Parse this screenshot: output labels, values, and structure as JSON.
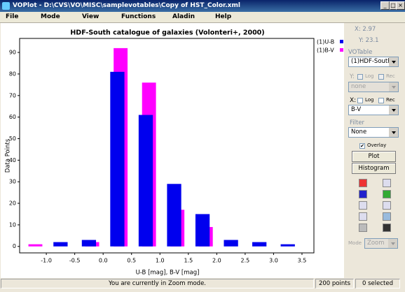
{
  "window": {
    "title": "VOPlot - D:\\CVS\\VO\\MISC\\samplevotables\\Copy of HST_Color.xml"
  },
  "menu": [
    "File",
    "Mode",
    "View",
    "Functions",
    "Aladin",
    "Help"
  ],
  "chart_data": {
    "type": "histogram",
    "title": "HDF-South catalogue of galaxies (Volonteri+, 2000)",
    "x_label": "U-B [mag], B-V [mag]",
    "y_label": "Data Points",
    "bins": [
      -1.5,
      -1.0,
      -0.5,
      0.0,
      0.5,
      1.0,
      1.5,
      2.0,
      2.5,
      3.0,
      3.5
    ],
    "series": [
      {
        "name": "(1)U-B",
        "color": "#0000ee",
        "values": [
          0,
          2,
          3,
          81,
          61,
          29,
          15,
          3,
          2,
          1
        ]
      },
      {
        "name": "(1)B-V",
        "color": "#ff00ff",
        "values": [
          1,
          0,
          2,
          92,
          76,
          17,
          9,
          0,
          0,
          0
        ]
      }
    ],
    "xlim": [
      -1.47,
      3.71
    ],
    "ylim": [
      -3,
      96.5
    ],
    "xticks": [
      {
        "value": -1.0,
        "label": "-1.0"
      },
      {
        "value": -0.5,
        "label": "-0.5"
      },
      {
        "value": 0.0,
        "label": "0.0"
      },
      {
        "value": 0.5,
        "label": "0.5"
      },
      {
        "value": 1.0,
        "label": "1.0"
      },
      {
        "value": 1.5,
        "label": "1.5"
      },
      {
        "value": 2.0,
        "label": "2.0"
      },
      {
        "value": 2.5,
        "label": "2.5"
      },
      {
        "value": 3.0,
        "label": "3.0"
      },
      {
        "value": 3.5,
        "label": "3.5"
      }
    ],
    "yticks": [
      0,
      10,
      20,
      30,
      40,
      50,
      60,
      70,
      80,
      90
    ],
    "grid": false,
    "legend": "top-right"
  },
  "panel": {
    "x_readout": "X: 2.97",
    "y_readout": "Y: 23.1",
    "votable_label": "VOTable",
    "votable_select": "(1)HDF-South",
    "y_axis_label": "Y:",
    "log": "Log",
    "rec": "Rec",
    "y_select": "none",
    "x_axis_label": "X:",
    "x_select": "B-V",
    "filter_label": "Filter",
    "filter_select": "None",
    "overlay": "Overlay",
    "plot_button": "Plot",
    "histogram_button": "Histogram",
    "mode_label": "Mode",
    "mode_select": "Zoom"
  },
  "status": {
    "message": "You are currently in Zoom mode.",
    "points": "200 points",
    "selected": "0 selected"
  }
}
